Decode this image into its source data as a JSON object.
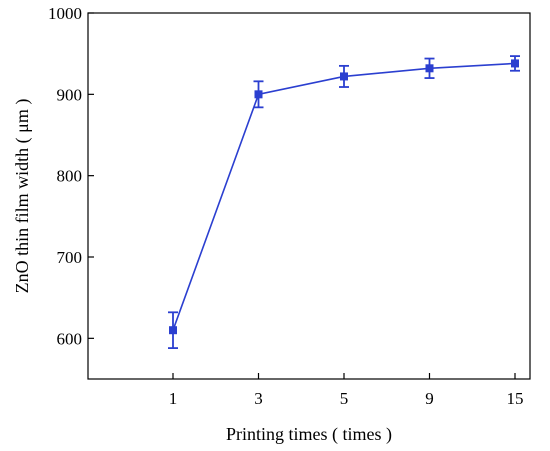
{
  "chart_data": {
    "type": "line",
    "categories": [
      "1",
      "3",
      "5",
      "9",
      "15"
    ],
    "series": [
      {
        "values": [
          610,
          900,
          922,
          932,
          938
        ],
        "errors": [
          22,
          16,
          13,
          12,
          9
        ]
      }
    ],
    "xlabel": "Printing times ( times )",
    "ylabel": "ZnO thin film width ( μm )",
    "ylim": [
      550,
      1000
    ],
    "yticks": [
      600,
      700,
      800,
      900,
      1000
    ],
    "grid": false,
    "legend": "none",
    "marker": "square",
    "colors": {
      "series": "#2b3fd0",
      "axes": "#000000"
    }
  }
}
